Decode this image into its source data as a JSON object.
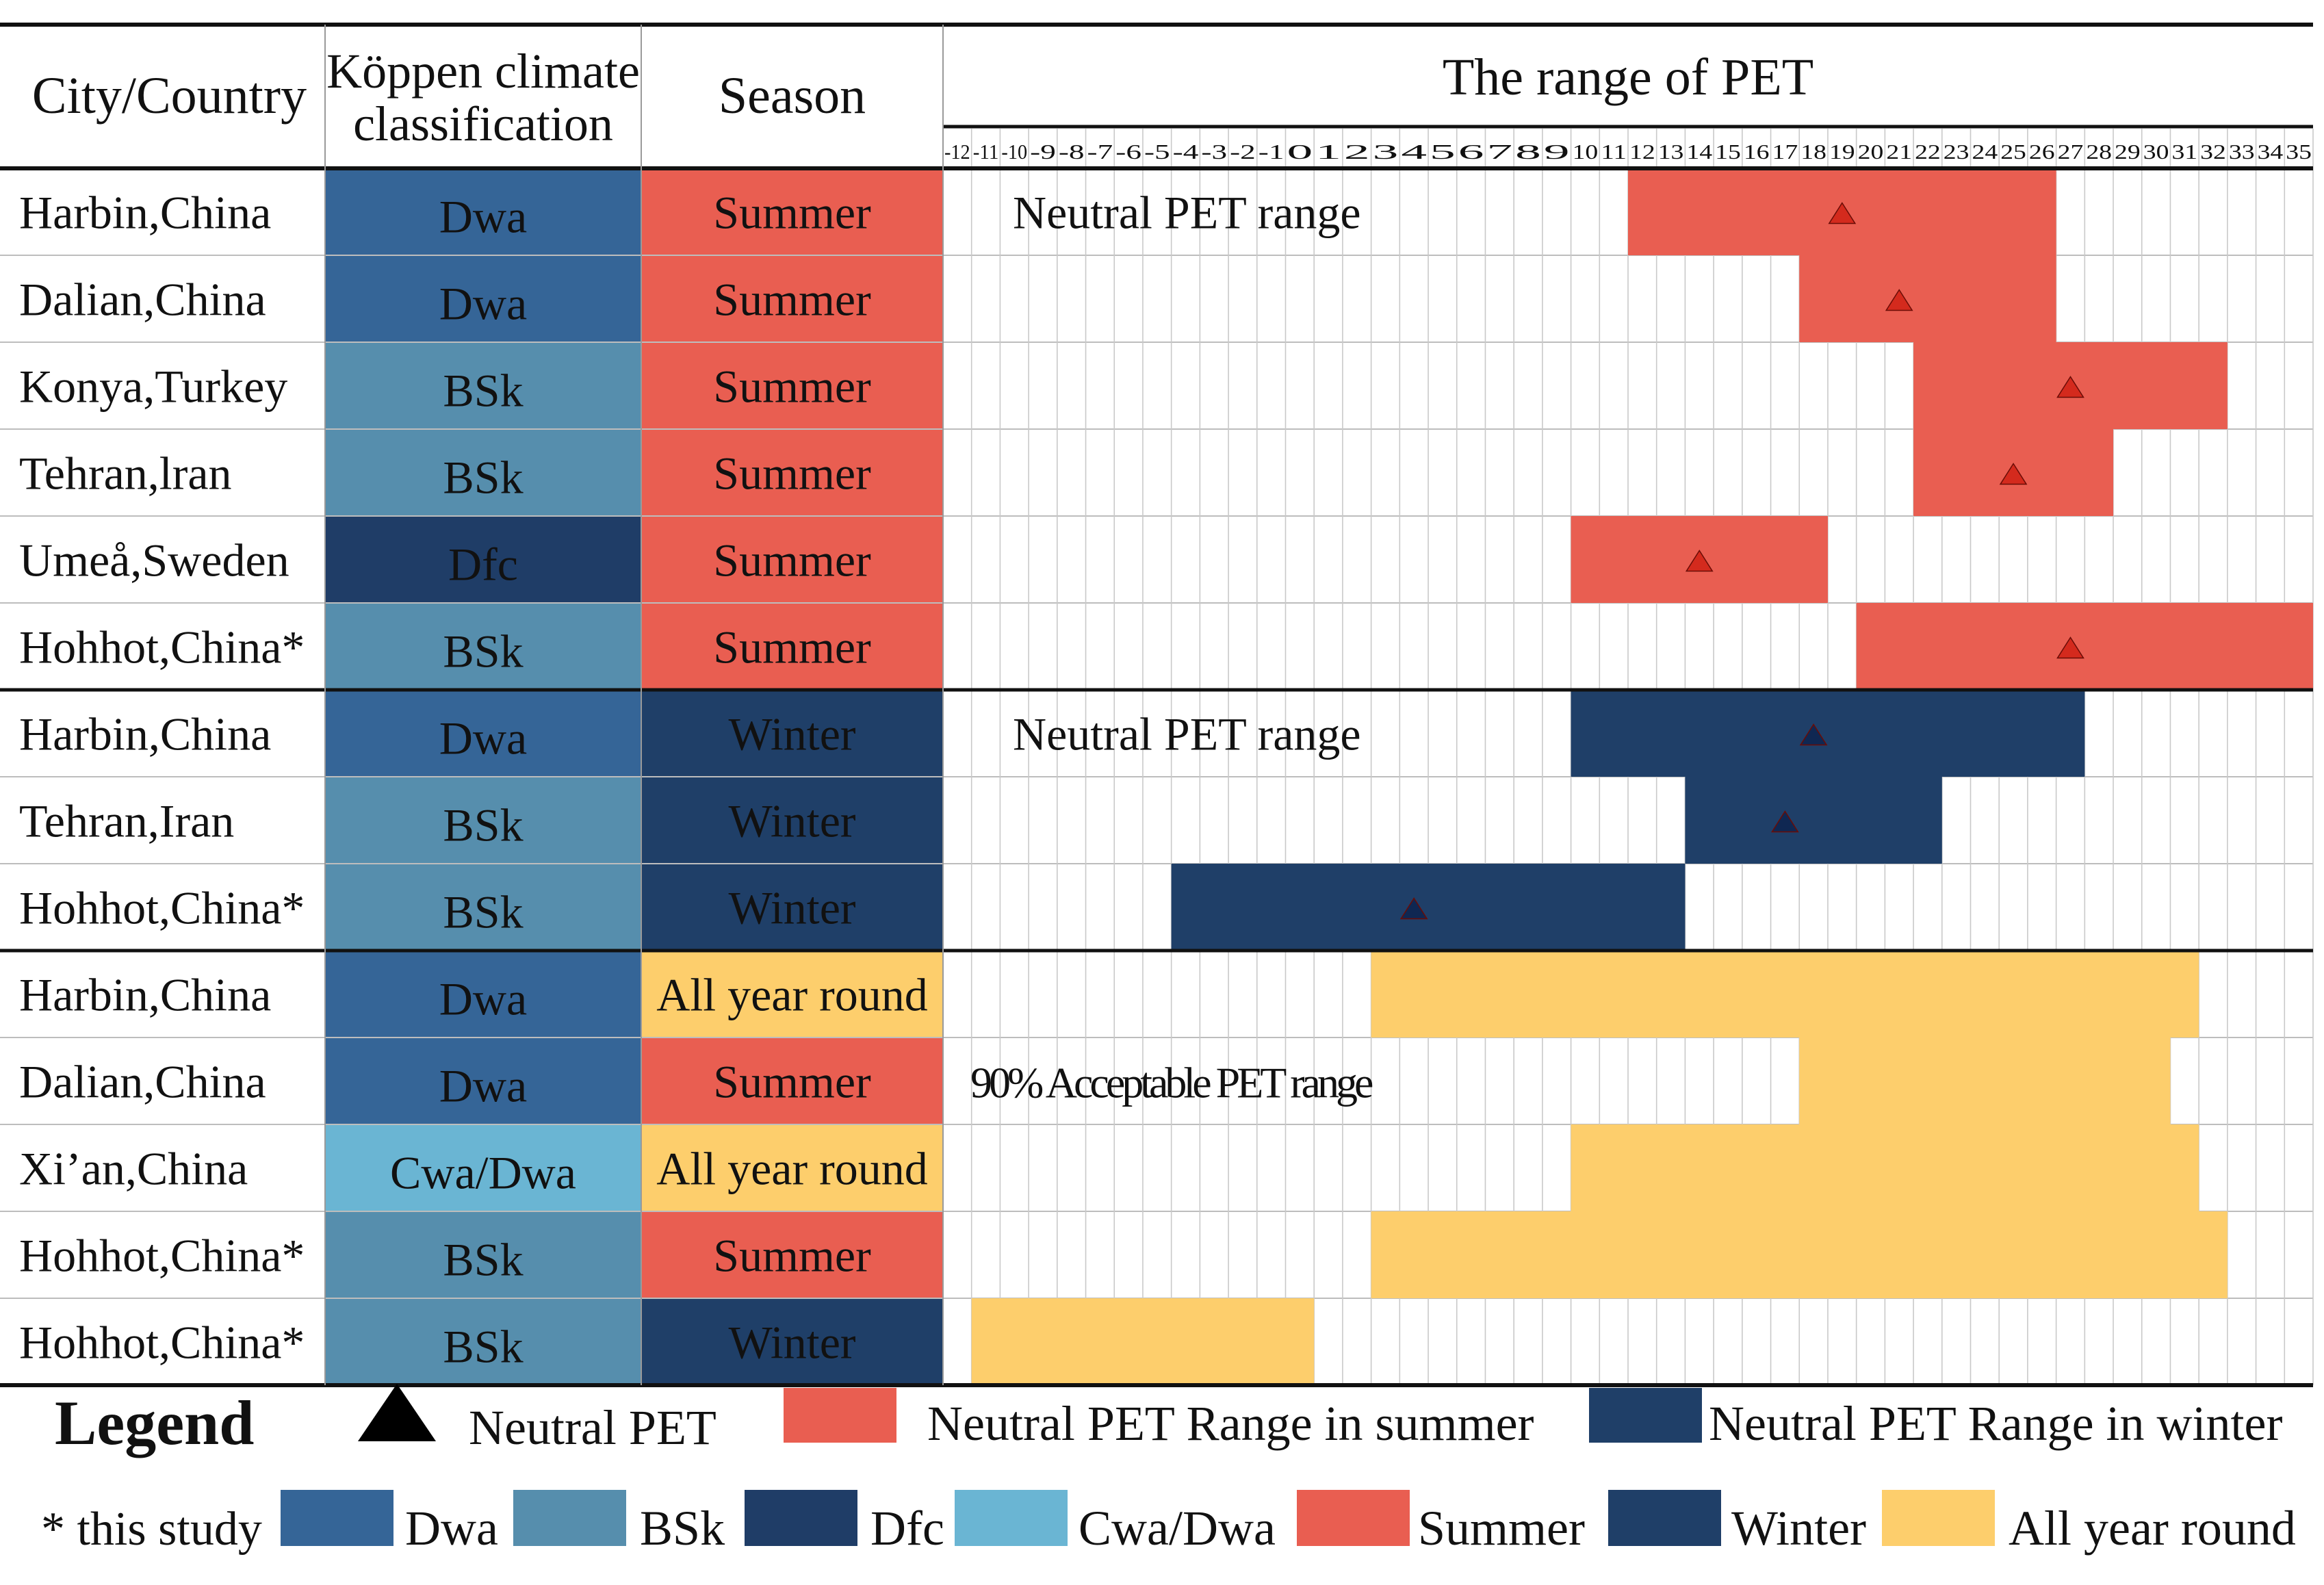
{
  "chart_data": {
    "type": "table",
    "headers": {
      "city": "City/Country",
      "koppen": [
        "Köppen climate",
        "classification"
      ],
      "season": "Season",
      "range": "The range of PET"
    },
    "axis": {
      "min": -12,
      "max": 35,
      "ticks": [
        -12,
        -11,
        -10,
        -9,
        -8,
        -7,
        -6,
        -5,
        -4,
        -3,
        -2,
        -1,
        0,
        1,
        2,
        3,
        4,
        5,
        6,
        7,
        8,
        9,
        10,
        11,
        12,
        13,
        14,
        15,
        16,
        17,
        18,
        19,
        20,
        21,
        22,
        23,
        24,
        25,
        26,
        27,
        28,
        29,
        30,
        31,
        32,
        33,
        34,
        35
      ]
    },
    "colors": {
      "Dwa": "#356597",
      "BSk": "#568ead",
      "Dfc": "#1f3d67",
      "Cwa/Dwa": "#6ab5d3",
      "Summer": "#e95e51",
      "Winter": "#1f3f68",
      "All year round": "#fdce6c",
      "summer_range": "#e95e51",
      "winter_range": "#1f3f68",
      "acceptable_range": "#fdce6c",
      "summer_marker": "#d42a1d",
      "winter_marker": "#0f2752"
    },
    "groups": [
      {
        "label": "Neutral PET range",
        "label_row": 1,
        "rows": [
          {
            "city": "Harbin,China",
            "koppen": "Dwa",
            "season": "Summer",
            "range": [
              12,
              26
            ],
            "neutral": 19,
            "kind": "summer_range"
          },
          {
            "city": "Dalian,China",
            "koppen": "Dwa",
            "season": "Summer",
            "range": [
              18,
              26
            ],
            "neutral": 21,
            "kind": "summer_range"
          },
          {
            "city": "Konya,Turkey",
            "koppen": "BSk",
            "season": "Summer",
            "range": [
              22,
              32
            ],
            "neutral": 27,
            "kind": "summer_range"
          },
          {
            "city": "Tehran,lran",
            "koppen": "BSk",
            "season": "Summer",
            "range": [
              22,
              28
            ],
            "neutral": 25,
            "kind": "summer_range"
          },
          {
            "city": "Umeå,Sweden",
            "koppen": "Dfc",
            "season": "Summer",
            "range": [
              10,
              18
            ],
            "neutral": 14,
            "kind": "summer_range"
          },
          {
            "city": "Hohhot,China*",
            "koppen": "BSk",
            "season": "Summer",
            "range": [
              20,
              35
            ],
            "neutral": 27,
            "kind": "summer_range"
          }
        ]
      },
      {
        "label": "Neutral PET range",
        "label_row": 1,
        "rows": [
          {
            "city": "Harbin,China",
            "koppen": "Dwa",
            "season": "Winter",
            "range": [
              10,
              27
            ],
            "neutral": 18,
            "kind": "winter_range"
          },
          {
            "city": "Tehran,Iran",
            "koppen": "BSk",
            "season": "Winter",
            "range": [
              14,
              22
            ],
            "neutral": 17,
            "kind": "winter_range"
          },
          {
            "city": "Hohhot,China*",
            "koppen": "BSk",
            "season": "Winter",
            "range": [
              -4,
              13
            ],
            "neutral": 4,
            "kind": "winter_range"
          }
        ]
      },
      {
        "label": "90% Acceptable PET range",
        "label_row": 2,
        "rows": [
          {
            "city": "Harbin,China",
            "koppen": "Dwa",
            "season": "All year round",
            "range": [
              3,
              31
            ],
            "neutral": null,
            "kind": "acceptable_range"
          },
          {
            "city": "Dalian,China",
            "koppen": "Dwa",
            "season": "Summer",
            "range": [
              18,
              30
            ],
            "neutral": null,
            "kind": "acceptable_range"
          },
          {
            "city": "Xi’an,China",
            "koppen": "Cwa/Dwa",
            "season": "All year round",
            "range": [
              10,
              31
            ],
            "neutral": null,
            "kind": "acceptable_range"
          },
          {
            "city": "Hohhot,China*",
            "koppen": "BSk",
            "season": "Summer",
            "range": [
              3,
              32
            ],
            "neutral": null,
            "kind": "acceptable_range"
          },
          {
            "city": "Hohhot,China*",
            "koppen": "BSk",
            "season": "Winter",
            "range": [
              -11,
              0
            ],
            "neutral": null,
            "kind": "acceptable_range"
          }
        ]
      }
    ],
    "legend": {
      "title": "Legend",
      "row1": [
        {
          "type": "triangle",
          "label": "Neutral PET"
        },
        {
          "type": "swatch",
          "color_key": "summer_range",
          "label": "Neutral PET Range in summer"
        },
        {
          "type": "swatch",
          "color_key": "winter_range",
          "label": "Neutral PET Range in winter"
        }
      ],
      "row2_note": "* this study",
      "row2": [
        {
          "color_key": "Dwa",
          "label": "Dwa"
        },
        {
          "color_key": "BSk",
          "label": "BSk"
        },
        {
          "color_key": "Dfc",
          "label": "Dfc"
        },
        {
          "color_key": "Cwa/Dwa",
          "label": "Cwa/Dwa"
        },
        {
          "color_key": "Summer",
          "label": "Summer"
        },
        {
          "color_key": "Winter",
          "label": "Winter"
        },
        {
          "color_key": "All year round",
          "label": "All year round"
        }
      ]
    }
  }
}
